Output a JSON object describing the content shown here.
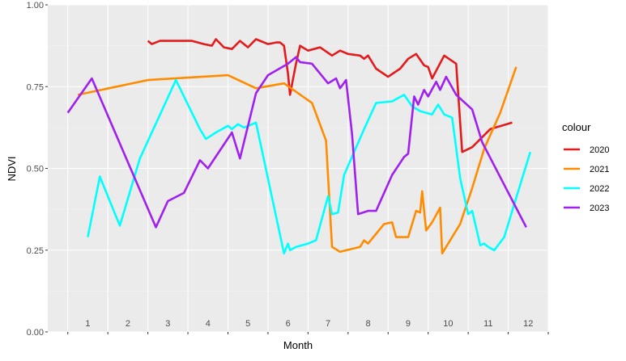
{
  "chart_data": {
    "type": "line",
    "title": "",
    "xlabel": "Month",
    "ylabel": "NDVI",
    "xlim": [
      0,
      12.5
    ],
    "ylim": [
      0,
      1
    ],
    "x_ticks": [
      1,
      2,
      3,
      4,
      5,
      6,
      7,
      8,
      9,
      10,
      11,
      12
    ],
    "y_ticks": [
      0,
      0.25,
      0.5,
      0.75,
      1
    ],
    "y_tick_labels": [
      "0.00",
      "0.25",
      "0.50",
      "0.75",
      "1.00"
    ],
    "grid": true,
    "legend": {
      "title": "colour",
      "position": "right"
    },
    "series": [
      {
        "name": "2020",
        "color": "#e41a1c",
        "points": [
          [
            2.5,
            0.89
          ],
          [
            2.6,
            0.88
          ],
          [
            2.8,
            0.89
          ],
          [
            3.0,
            0.89
          ],
          [
            3.3,
            0.89
          ],
          [
            3.6,
            0.89
          ],
          [
            3.9,
            0.88
          ],
          [
            4.1,
            0.875
          ],
          [
            4.2,
            0.895
          ],
          [
            4.4,
            0.87
          ],
          [
            4.6,
            0.865
          ],
          [
            4.8,
            0.89
          ],
          [
            5.0,
            0.87
          ],
          [
            5.2,
            0.895
          ],
          [
            5.5,
            0.88
          ],
          [
            5.7,
            0.885
          ],
          [
            5.8,
            0.885
          ],
          [
            5.9,
            0.875
          ],
          [
            6.0,
            0.79
          ],
          [
            6.05,
            0.725
          ],
          [
            6.2,
            0.82
          ],
          [
            6.3,
            0.875
          ],
          [
            6.5,
            0.86
          ],
          [
            6.8,
            0.87
          ],
          [
            7.1,
            0.845
          ],
          [
            7.3,
            0.86
          ],
          [
            7.5,
            0.85
          ],
          [
            7.8,
            0.845
          ],
          [
            7.9,
            0.835
          ],
          [
            8.0,
            0.845
          ],
          [
            8.2,
            0.805
          ],
          [
            8.5,
            0.78
          ],
          [
            8.8,
            0.805
          ],
          [
            9.0,
            0.835
          ],
          [
            9.2,
            0.85
          ],
          [
            9.4,
            0.815
          ],
          [
            9.5,
            0.81
          ],
          [
            9.6,
            0.775
          ],
          [
            9.9,
            0.845
          ],
          [
            10.2,
            0.82
          ],
          [
            10.35,
            0.55
          ],
          [
            10.6,
            0.565
          ],
          [
            11.05,
            0.62
          ],
          [
            11.6,
            0.64
          ]
        ]
      },
      {
        "name": "2021",
        "color": "#ff8c00",
        "points": [
          [
            0.75,
            0.725
          ],
          [
            2.5,
            0.77
          ],
          [
            4.5,
            0.785
          ],
          [
            5.2,
            0.745
          ],
          [
            5.9,
            0.76
          ],
          [
            6.6,
            0.7
          ],
          [
            6.95,
            0.585
          ],
          [
            7.1,
            0.26
          ],
          [
            7.3,
            0.245
          ],
          [
            7.8,
            0.26
          ],
          [
            7.9,
            0.28
          ],
          [
            8.0,
            0.27
          ],
          [
            8.2,
            0.3
          ],
          [
            8.4,
            0.33
          ],
          [
            8.6,
            0.335
          ],
          [
            8.7,
            0.29
          ],
          [
            9.0,
            0.29
          ],
          [
            9.2,
            0.37
          ],
          [
            9.3,
            0.365
          ],
          [
            9.35,
            0.43
          ],
          [
            9.45,
            0.31
          ],
          [
            9.6,
            0.335
          ],
          [
            9.8,
            0.38
          ],
          [
            9.85,
            0.24
          ],
          [
            10.1,
            0.29
          ],
          [
            10.3,
            0.33
          ],
          [
            10.6,
            0.44
          ],
          [
            10.9,
            0.56
          ],
          [
            11.3,
            0.67
          ],
          [
            11.7,
            0.81
          ]
        ]
      },
      {
        "name": "2022",
        "color": "#00ffff",
        "points": [
          [
            1.0,
            0.29
          ],
          [
            1.3,
            0.475
          ],
          [
            1.7,
            0.355
          ],
          [
            1.8,
            0.325
          ],
          [
            2.3,
            0.53
          ],
          [
            3.2,
            0.77
          ],
          [
            3.8,
            0.62
          ],
          [
            3.95,
            0.59
          ],
          [
            4.2,
            0.61
          ],
          [
            4.5,
            0.63
          ],
          [
            4.6,
            0.62
          ],
          [
            4.75,
            0.635
          ],
          [
            4.9,
            0.625
          ],
          [
            5.2,
            0.64
          ],
          [
            5.9,
            0.24
          ],
          [
            6.0,
            0.27
          ],
          [
            6.05,
            0.25
          ],
          [
            6.2,
            0.26
          ],
          [
            6.5,
            0.27
          ],
          [
            6.7,
            0.28
          ],
          [
            7.0,
            0.415
          ],
          [
            7.1,
            0.36
          ],
          [
            7.25,
            0.365
          ],
          [
            7.4,
            0.48
          ],
          [
            7.9,
            0.62
          ],
          [
            8.2,
            0.7
          ],
          [
            8.6,
            0.705
          ],
          [
            8.9,
            0.725
          ],
          [
            9.1,
            0.69
          ],
          [
            9.3,
            0.675
          ],
          [
            9.6,
            0.665
          ],
          [
            9.75,
            0.695
          ],
          [
            9.9,
            0.665
          ],
          [
            10.1,
            0.655
          ],
          [
            10.3,
            0.47
          ],
          [
            10.5,
            0.36
          ],
          [
            10.6,
            0.37
          ],
          [
            10.8,
            0.265
          ],
          [
            10.9,
            0.27
          ],
          [
            11.0,
            0.26
          ],
          [
            11.15,
            0.25
          ],
          [
            11.4,
            0.29
          ],
          [
            11.7,
            0.41
          ],
          [
            12.05,
            0.55
          ]
        ]
      },
      {
        "name": "2023",
        "color": "#a020f0",
        "points": [
          [
            0.5,
            0.67
          ],
          [
            1.1,
            0.775
          ],
          [
            2.7,
            0.32
          ],
          [
            3.0,
            0.4
          ],
          [
            3.4,
            0.425
          ],
          [
            3.8,
            0.525
          ],
          [
            4.0,
            0.5
          ],
          [
            4.6,
            0.61
          ],
          [
            4.8,
            0.53
          ],
          [
            5.2,
            0.73
          ],
          [
            5.5,
            0.785
          ],
          [
            6.0,
            0.82
          ],
          [
            6.2,
            0.84
          ],
          [
            6.3,
            0.825
          ],
          [
            6.6,
            0.82
          ],
          [
            7.0,
            0.76
          ],
          [
            7.2,
            0.775
          ],
          [
            7.3,
            0.745
          ],
          [
            7.45,
            0.77
          ],
          [
            7.6,
            0.605
          ],
          [
            7.75,
            0.36
          ],
          [
            8.0,
            0.37
          ],
          [
            8.2,
            0.37
          ],
          [
            8.6,
            0.48
          ],
          [
            8.9,
            0.535
          ],
          [
            9.0,
            0.545
          ],
          [
            9.15,
            0.72
          ],
          [
            9.25,
            0.695
          ],
          [
            9.4,
            0.74
          ],
          [
            9.5,
            0.72
          ],
          [
            9.7,
            0.765
          ],
          [
            9.8,
            0.74
          ],
          [
            9.95,
            0.78
          ],
          [
            10.2,
            0.725
          ],
          [
            10.6,
            0.68
          ],
          [
            10.85,
            0.58
          ],
          [
            11.4,
            0.45
          ],
          [
            11.95,
            0.32
          ]
        ]
      }
    ]
  }
}
